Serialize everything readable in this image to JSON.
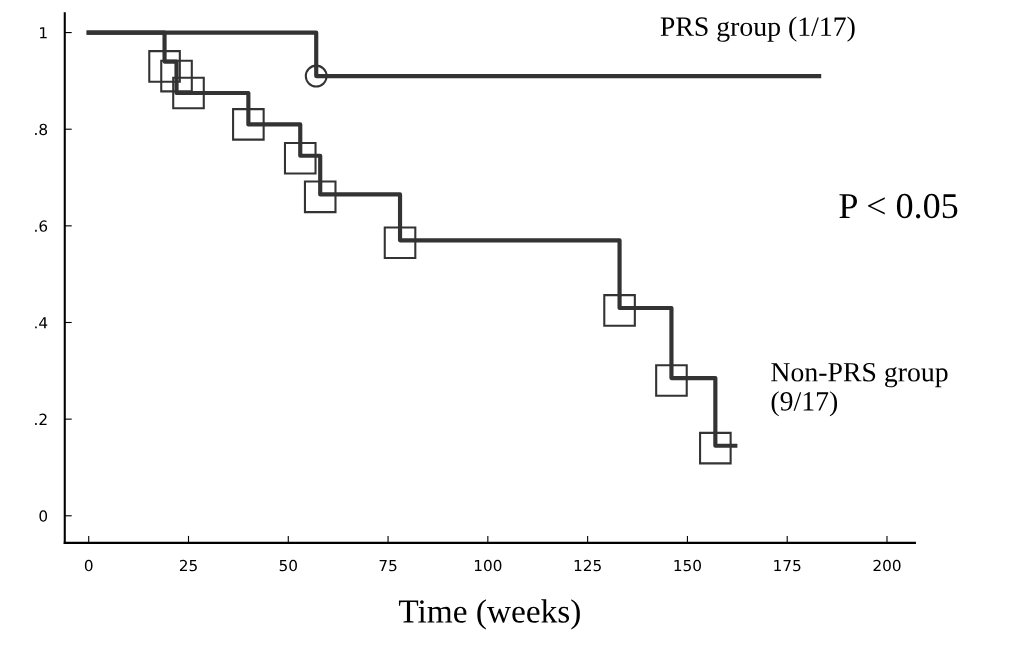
{
  "chart_data": {
    "type": "step",
    "xlabel": "Time (weeks)",
    "xlim": [
      -6,
      207
    ],
    "ylim": [
      -0.056,
      1.04
    ],
    "xticks": [
      0,
      25,
      50,
      75,
      100,
      125,
      150,
      175,
      200
    ],
    "yticks": [
      {
        "value": 0,
        "label": "0"
      },
      {
        "value": 0.2,
        "label": ".2"
      },
      {
        "value": 0.4,
        "label": ".4"
      },
      {
        "value": 0.6,
        "label": ".6"
      },
      {
        "value": 0.8,
        "label": ".8"
      },
      {
        "value": 1,
        "label": "1"
      }
    ],
    "grid": false,
    "series": [
      {
        "color": "#333333",
        "x": [
          0,
          57,
          183
        ],
        "values": [
          1,
          0.91,
          0.91
        ],
        "marker": "none"
      },
      {
        "color": "#333333",
        "x": [
          0,
          19,
          22,
          40,
          53,
          58,
          78,
          133,
          146,
          157,
          162
        ],
        "values": [
          1,
          0.94,
          0.875,
          0.81,
          0.745,
          0.665,
          0.57,
          0.43,
          0.285,
          0.145,
          0.145
        ],
        "marker": "none"
      },
      {
        "type": "scatter",
        "color": "#333333",
        "x": [
          57
        ],
        "values": [
          0.91
        ],
        "marker": "circle"
      },
      {
        "type": "scatter",
        "color": "#333333",
        "x": [
          19,
          22,
          25,
          40,
          53,
          58,
          78,
          133,
          146,
          157
        ],
        "values": [
          0.93,
          0.91,
          0.875,
          0.81,
          0.74,
          0.66,
          0.565,
          0.425,
          0.28,
          0.14
        ],
        "marker": "square"
      }
    ],
    "annotations": [
      "PRS group (1/17)",
      "P < 0.05",
      "Non-PRS group\n(9/17)"
    ]
  }
}
